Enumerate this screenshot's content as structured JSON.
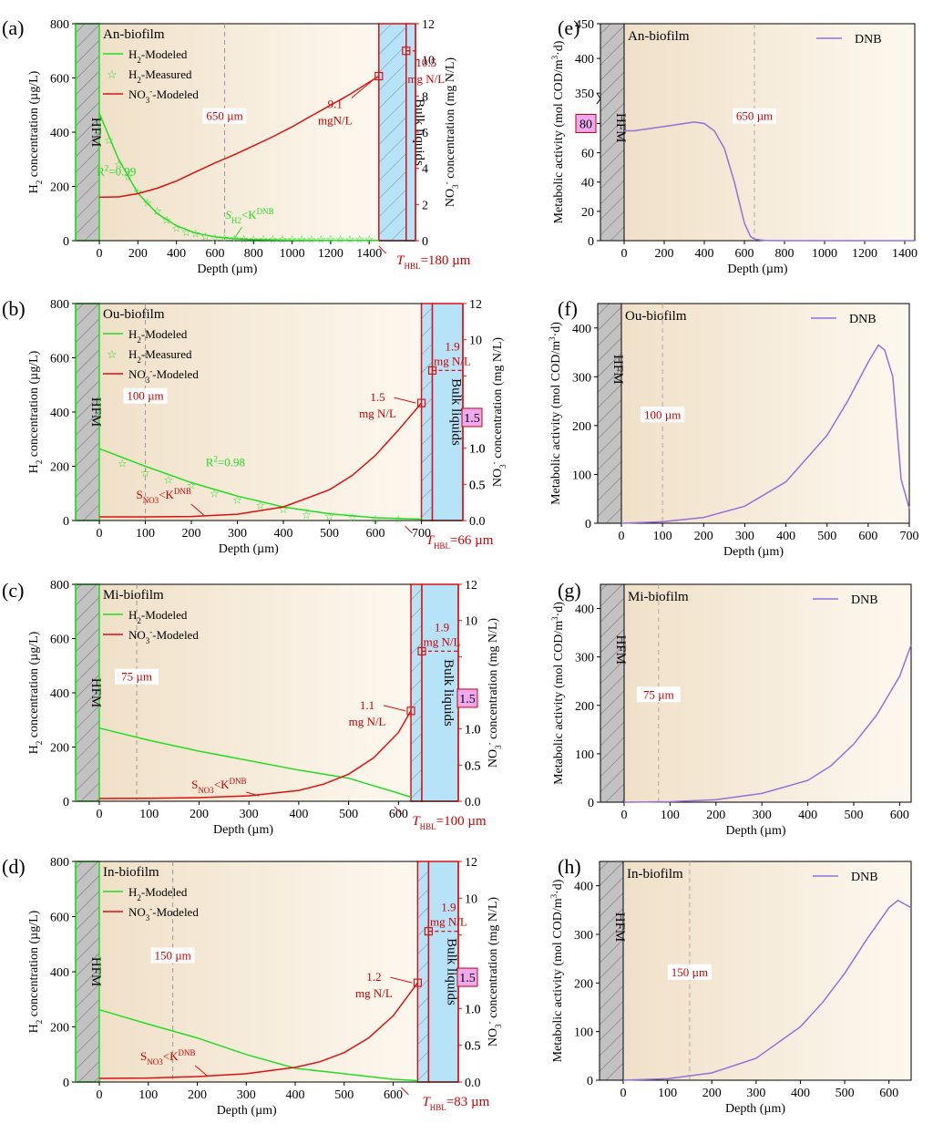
{
  "figure": {
    "hfm_label": "HFM",
    "bulk_label": "Bulk liquids",
    "depth_label": "Depth (µm)",
    "h2_axis_label": "H2 concentration (µg/L)",
    "no3_axis_label": "NO3- concentration (mg N/L)",
    "activity_axis_label": "Metabolic activity (mol COD/m3·d)",
    "legend_dnb": "DNB",
    "legend_h2_modeled": "H2-Modeled",
    "legend_h2_measured": "H2-Measured",
    "legend_no3_modeled": "NO3--Modeled"
  },
  "colors": {
    "h2": "#22dd22",
    "no3": "#dd1111",
    "dnb": "#9370db",
    "bulk": "#b7e3f9",
    "bg_start": "#f0e0c8",
    "bg_end": "#fdf8ef"
  },
  "chart_data": [
    {
      "panel": "(a)",
      "type": "line",
      "title": "An-biofilm",
      "xlim": [
        -60,
        1450
      ],
      "xticks": [
        0,
        200,
        400,
        600,
        800,
        1000,
        1200,
        1400
      ],
      "ylim_left": [
        0,
        800
      ],
      "yticks_left": [
        0,
        200,
        400,
        600,
        800
      ],
      "ylim_right": [
        0,
        12
      ],
      "yticks_right": [
        0,
        2,
        4,
        6,
        8,
        10,
        12
      ],
      "biofilm_end": 1450,
      "bulk_end": 1640,
      "vline": {
        "x": 650,
        "label": "650 µm"
      },
      "h2_modeled": {
        "x": [
          0,
          100,
          200,
          300,
          400,
          500,
          600,
          700,
          800,
          1000,
          1200,
          1450
        ],
        "y": [
          470,
          300,
          175,
          100,
          55,
          28,
          14,
          7,
          4,
          2,
          1,
          1
        ]
      },
      "h2_measured": {
        "x": [
          50,
          100,
          150,
          200,
          250,
          300,
          350,
          400,
          450,
          500,
          550,
          600,
          650,
          700,
          750,
          800,
          850,
          900,
          950,
          1000,
          1050,
          1100,
          1150,
          1200,
          1250,
          1300,
          1350,
          1400
        ],
        "y": [
          370,
          280,
          235,
          180,
          140,
          110,
          75,
          45,
          30,
          25,
          15,
          10,
          8,
          6,
          5,
          5,
          5,
          5,
          5,
          5,
          5,
          5,
          5,
          5,
          5,
          5,
          5,
          5
        ]
      },
      "no3_modeled": {
        "x": [
          0,
          100,
          200,
          300,
          400,
          500,
          600,
          700,
          800,
          900,
          1000,
          1100,
          1200,
          1300,
          1450
        ],
        "y": [
          2.4,
          2.42,
          2.6,
          2.9,
          3.3,
          3.8,
          4.3,
          4.75,
          5.25,
          5.75,
          6.3,
          6.9,
          7.5,
          8.1,
          9.1
        ]
      },
      "marker_surface": {
        "y": 9.1,
        "label": "9.1",
        "unit": "mgN/L"
      },
      "marker_bulk": {
        "y": 10.5,
        "label": "10.5",
        "unit": "mg N/L"
      },
      "r2": "R²=0.99",
      "annotation": "SH2<KH2DNB",
      "thbl": "THBL=180 µm"
    },
    {
      "panel": "(b)",
      "type": "line",
      "title": "Ou-biofilm",
      "xlim": [
        -60,
        700
      ],
      "xticks": [
        0,
        100,
        200,
        300,
        400,
        500,
        600,
        700
      ],
      "ylim_left": [
        0,
        800
      ],
      "yticks_left": [
        0,
        200,
        400,
        600,
        800
      ],
      "ylim_right": [
        0,
        12
      ],
      "right_axis_break": true,
      "right_break_label": "1.5",
      "biofilm_end": 700,
      "bulk_end": 790,
      "vline": {
        "x": 100,
        "label": "100 µm"
      },
      "h2_modeled": {
        "x": [
          0,
          100,
          200,
          300,
          400,
          500,
          600,
          700
        ],
        "y": [
          265,
          200,
          140,
          90,
          50,
          25,
          10,
          5
        ]
      },
      "h2_measured": {
        "x": [
          50,
          100,
          150,
          200,
          250,
          300,
          350,
          400,
          450,
          500,
          550,
          600,
          650
        ],
        "y": [
          210,
          175,
          150,
          130,
          100,
          75,
          55,
          40,
          20,
          15,
          10,
          5,
          5
        ]
      },
      "no3_modeled": {
        "x": [
          0,
          100,
          200,
          300,
          400,
          500,
          550,
          600,
          650,
          700
        ],
        "y": [
          0.2,
          0.2,
          0.22,
          0.35,
          0.75,
          1.7,
          2.5,
          3.6,
          5.0,
          6.5
        ]
      },
      "marker_surface": {
        "y": 6.5,
        "label": "1.5",
        "unit": "mg N/L"
      },
      "marker_bulk": {
        "y": 8.3,
        "label": "1.9",
        "unit": "mg N/L"
      },
      "r2": "R²=0.98",
      "annotation": "SNO3<KNO3DNB",
      "thbl": "THBL=66 µm"
    },
    {
      "panel": "(c)",
      "type": "line",
      "title": "Mi-biofilm",
      "xlim": [
        -60,
        625
      ],
      "xticks": [
        0,
        100,
        200,
        300,
        400,
        500,
        600
      ],
      "ylim_left": [
        0,
        800
      ],
      "yticks_left": [
        0,
        200,
        400,
        600,
        800
      ],
      "ylim_right": [
        0,
        12
      ],
      "right_axis_break": true,
      "right_break_label": "1.5",
      "biofilm_end": 625,
      "bulk_end": 720,
      "vline": {
        "x": 75,
        "label": "75 µm"
      },
      "h2_modeled": {
        "x": [
          0,
          100,
          200,
          300,
          400,
          500,
          600,
          625
        ],
        "y": [
          270,
          225,
          185,
          150,
          115,
          85,
          30,
          15
        ]
      },
      "no3_modeled": {
        "x": [
          0,
          100,
          200,
          300,
          400,
          450,
          500,
          550,
          600,
          625
        ],
        "y": [
          0.15,
          0.16,
          0.2,
          0.3,
          0.6,
          0.95,
          1.5,
          2.4,
          3.8,
          5.0
        ]
      },
      "marker_surface": {
        "y": 5.0,
        "label": "1.1",
        "unit": "mg N/L"
      },
      "marker_bulk": {
        "y": 8.3,
        "label": "1.9",
        "unit": "mg N/L"
      },
      "annotation": "SNO3<KNO3DNB",
      "thbl": "THBL=100 µm"
    },
    {
      "panel": "(d)",
      "type": "line",
      "title": "In-biofilm",
      "xlim": [
        -60,
        650
      ],
      "xticks": [
        0,
        100,
        200,
        300,
        400,
        500,
        600
      ],
      "ylim_left": [
        0,
        800
      ],
      "yticks_left": [
        0,
        200,
        400,
        600,
        800
      ],
      "ylim_right": [
        0,
        12
      ],
      "right_axis_break": true,
      "right_break_label": "1.5",
      "biofilm_end": 650,
      "bulk_end": 733,
      "vline": {
        "x": 150,
        "label": "150 µm"
      },
      "h2_modeled": {
        "x": [
          0,
          100,
          200,
          300,
          400,
          500,
          600,
          650
        ],
        "y": [
          262,
          210,
          160,
          100,
          50,
          30,
          10,
          5
        ]
      },
      "no3_modeled": {
        "x": [
          0,
          100,
          200,
          300,
          400,
          450,
          500,
          550,
          600,
          650
        ],
        "y": [
          0.2,
          0.22,
          0.3,
          0.45,
          0.8,
          1.1,
          1.6,
          2.4,
          3.6,
          5.4
        ]
      },
      "marker_surface": {
        "y": 5.4,
        "label": "1.2",
        "unit": "mg N/L"
      },
      "marker_bulk": {
        "y": 8.2,
        "label": "1.9",
        "unit": "mg N/L"
      },
      "annotation": "SNO3<KNO3DNB",
      "thbl": "THBL=83 µm"
    },
    {
      "panel": "(e)",
      "type": "line",
      "title": "An-biofilm",
      "xlim": [
        -120,
        1450
      ],
      "xticks": [
        0,
        200,
        400,
        600,
        800,
        1000,
        1200,
        1400
      ],
      "broken_y": true,
      "ytick_labels": [
        0,
        20,
        40,
        60,
        80,
        350,
        400,
        450
      ],
      "break_label": "80",
      "vline": {
        "x": 650,
        "label": "650 µm"
      },
      "dnb": {
        "x": [
          0,
          50,
          100,
          200,
          300,
          350,
          400,
          450,
          500,
          550,
          600,
          630,
          650,
          700,
          800,
          1450
        ],
        "y": [
          75,
          75,
          76,
          78,
          80,
          81,
          80,
          75,
          63,
          40,
          12,
          3,
          1,
          0.2,
          0,
          0
        ]
      }
    },
    {
      "panel": "(f)",
      "type": "line",
      "title": "Ou-biofilm",
      "xlim": [
        -100,
        700
      ],
      "xticks": [
        0,
        100,
        200,
        300,
        400,
        500,
        600,
        700
      ],
      "ylim": [
        0,
        450
      ],
      "yticks": [
        0,
        100,
        200,
        300,
        400
      ],
      "vline": {
        "x": 100,
        "label": "100 µm"
      },
      "dnb": {
        "x": [
          0,
          100,
          200,
          300,
          400,
          500,
          550,
          600,
          625,
          640,
          660,
          680,
          700
        ],
        "y": [
          0,
          3,
          12,
          35,
          85,
          180,
          250,
          330,
          365,
          355,
          300,
          90,
          30
        ]
      }
    },
    {
      "panel": "(g)",
      "type": "line",
      "title": "Mi-biofilm",
      "xlim": [
        -100,
        625
      ],
      "xticks": [
        0,
        100,
        200,
        300,
        400,
        500,
        600
      ],
      "ylim": [
        0,
        450
      ],
      "yticks": [
        0,
        100,
        200,
        300,
        400
      ],
      "vline": {
        "x": 75,
        "label": "75 µm"
      },
      "dnb": {
        "x": [
          0,
          100,
          200,
          300,
          400,
          450,
          500,
          550,
          600,
          625
        ],
        "y": [
          0,
          1,
          5,
          18,
          45,
          75,
          120,
          180,
          260,
          325
        ]
      }
    },
    {
      "panel": "(h)",
      "type": "line",
      "title": "In-biofilm",
      "xlim": [
        -100,
        650
      ],
      "xticks": [
        0,
        100,
        200,
        300,
        400,
        500,
        600
      ],
      "ylim": [
        0,
        450
      ],
      "yticks": [
        0,
        100,
        200,
        300,
        400
      ],
      "vline": {
        "x": 150,
        "label": "150 µm"
      },
      "dnb": {
        "x": [
          0,
          100,
          200,
          300,
          400,
          450,
          500,
          550,
          600,
          620,
          640,
          650
        ],
        "y": [
          0,
          3,
          15,
          45,
          110,
          160,
          220,
          290,
          355,
          370,
          360,
          355
        ]
      }
    }
  ]
}
